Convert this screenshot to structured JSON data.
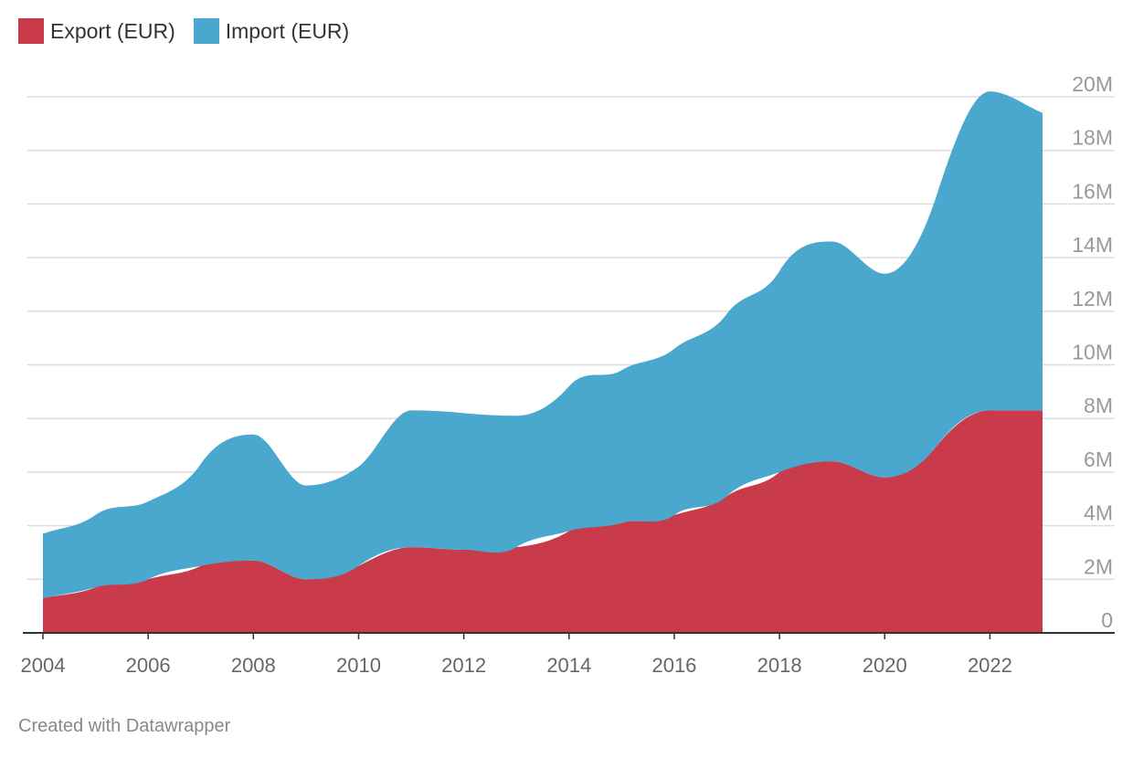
{
  "chart_data": {
    "type": "area",
    "stacked": true,
    "x": [
      2004,
      2005,
      2006,
      2007,
      2008,
      2009,
      2010,
      2011,
      2012,
      2013,
      2014,
      2015,
      2016,
      2017,
      2018,
      2019,
      2020,
      2021,
      2022,
      2023
    ],
    "series": [
      {
        "name": "Export (EUR)",
        "color": "#c93a4a",
        "values": [
          1.3,
          1.7,
          2.0,
          2.5,
          2.7,
          2.0,
          2.5,
          3.2,
          3.1,
          3.2,
          3.8,
          4.1,
          4.4,
          5.1,
          6.0,
          6.4,
          5.8,
          7.0,
          8.3,
          8.3
        ]
      },
      {
        "name": "Import (EUR)",
        "color": "#4aa8cf",
        "values": [
          2.4,
          2.7,
          2.9,
          3.8,
          4.7,
          3.5,
          3.7,
          5.1,
          5.1,
          4.9,
          5.4,
          5.7,
          6.2,
          6.8,
          7.5,
          8.2,
          7.6,
          9.4,
          11.9,
          11.1
        ]
      }
    ],
    "ylim": [
      0,
      20
    ],
    "y_ticks": [
      {
        "value": 0,
        "label": "0"
      },
      {
        "value": 2,
        "label": "2M"
      },
      {
        "value": 4,
        "label": "4M"
      },
      {
        "value": 6,
        "label": "6M"
      },
      {
        "value": 8,
        "label": "8M"
      },
      {
        "value": 10,
        "label": "10M"
      },
      {
        "value": 12,
        "label": "12M"
      },
      {
        "value": 14,
        "label": "14M"
      },
      {
        "value": 16,
        "label": "16M"
      },
      {
        "value": 18,
        "label": "18M"
      },
      {
        "value": 20,
        "label": "20M"
      }
    ],
    "x_ticks": [
      2004,
      2006,
      2008,
      2010,
      2012,
      2014,
      2016,
      2018,
      2020,
      2022
    ],
    "y_axis_position": "right",
    "grid": true,
    "legend_position": "top-left"
  },
  "legend": [
    {
      "label": "Export (EUR)",
      "color": "#c93a4a"
    },
    {
      "label": "Import (EUR)",
      "color": "#4aa8cf"
    }
  ],
  "footer": "Created with Datawrapper"
}
